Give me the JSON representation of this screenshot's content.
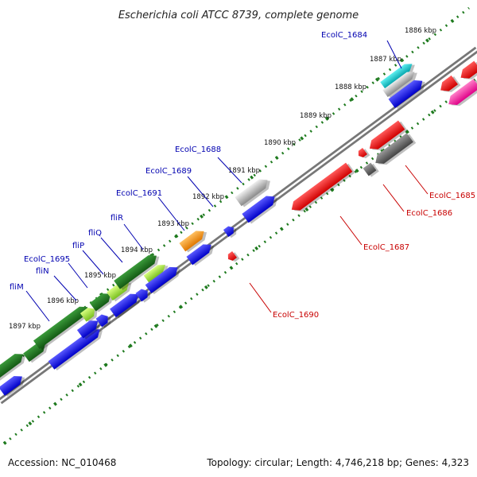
{
  "title": "Escherichia coli ATCC 8739, complete genome",
  "footer": {
    "accession": "Accession: NC_010468",
    "topology": "Topology: circular; Length: 4,746,218 bp; Genes: 4,323"
  },
  "colors": {
    "backbone": "#7a7a7a",
    "tick": "#1e7a1e",
    "blue_feature": "#1010e0",
    "red_feature": "#ee0000",
    "label_blue": "#0000b0",
    "label_red": "#c80000"
  },
  "kbp_ticks": [
    "1886 kbp",
    "1887 kbp",
    "1888 kbp",
    "1889 kbp",
    "1890 kbp",
    "1891 kbp",
    "1892 kbp",
    "1893 kbp",
    "1894 kbp",
    "1895 kbp",
    "1896 kbp",
    "1897 kbp"
  ],
  "gene_labels": [
    {
      "text": "EcolC_1684",
      "color": "#0000b0"
    },
    {
      "text": "EcolC_1688",
      "color": "#0000b0"
    },
    {
      "text": "EcolC_1689",
      "color": "#0000b0"
    },
    {
      "text": "EcolC_1691",
      "color": "#0000b0"
    },
    {
      "text": "fliR",
      "color": "#0000b0"
    },
    {
      "text": "fliQ",
      "color": "#0000b0"
    },
    {
      "text": "fliP",
      "color": "#0000b0"
    },
    {
      "text": "EcolC_1695",
      "color": "#0000b0"
    },
    {
      "text": "fliN",
      "color": "#0000b0"
    },
    {
      "text": "fliM",
      "color": "#0000b0"
    },
    {
      "text": "EcolC_1685",
      "color": "#c80000"
    },
    {
      "text": "EcolC_1686",
      "color": "#c80000"
    },
    {
      "text": "EcolC_1687",
      "color": "#c80000"
    },
    {
      "text": "EcolC_1690",
      "color": "#c80000"
    }
  ]
}
